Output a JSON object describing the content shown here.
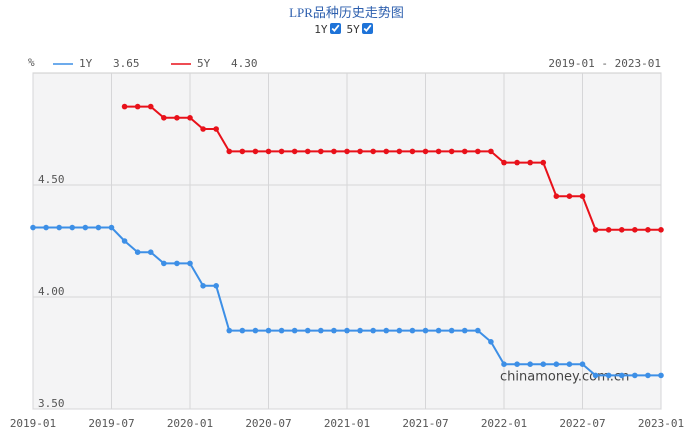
{
  "chart_data": {
    "type": "line",
    "title": "LPR品种历史走势图",
    "unit": "%",
    "date_range": "2019-01 - 2023-01",
    "watermark": "chinamoney.com.cn",
    "x": [
      "2019-01",
      "2019-02",
      "2019-03",
      "2019-04",
      "2019-05",
      "2019-06",
      "2019-07",
      "2019-08",
      "2019-09",
      "2019-10",
      "2019-11",
      "2019-12",
      "2020-01",
      "2020-02",
      "2020-03",
      "2020-04",
      "2020-05",
      "2020-06",
      "2020-07",
      "2020-08",
      "2020-09",
      "2020-10",
      "2020-11",
      "2020-12",
      "2021-01",
      "2021-02",
      "2021-03",
      "2021-04",
      "2021-05",
      "2021-06",
      "2021-07",
      "2021-08",
      "2021-09",
      "2021-10",
      "2021-11",
      "2021-12",
      "2022-01",
      "2022-02",
      "2022-03",
      "2022-04",
      "2022-05",
      "2022-06",
      "2022-07",
      "2022-08",
      "2022-09",
      "2022-10",
      "2022-11",
      "2022-12",
      "2023-01"
    ],
    "series": [
      {
        "name": "1Y",
        "color": "#3d8fe6",
        "latest_label": "3.65",
        "values": [
          4.31,
          4.31,
          4.31,
          4.31,
          4.31,
          4.31,
          4.31,
          4.25,
          4.2,
          4.2,
          4.15,
          4.15,
          4.15,
          4.05,
          4.05,
          3.85,
          3.85,
          3.85,
          3.85,
          3.85,
          3.85,
          3.85,
          3.85,
          3.85,
          3.85,
          3.85,
          3.85,
          3.85,
          3.85,
          3.85,
          3.85,
          3.85,
          3.85,
          3.85,
          3.85,
          3.8,
          3.7,
          3.7,
          3.7,
          3.7,
          3.7,
          3.7,
          3.7,
          3.65,
          3.65,
          3.65,
          3.65,
          3.65,
          3.65
        ]
      },
      {
        "name": "5Y",
        "color": "#e8111a",
        "latest_label": "4.30",
        "values": [
          null,
          null,
          null,
          null,
          null,
          null,
          null,
          4.85,
          4.85,
          4.85,
          4.8,
          4.8,
          4.8,
          4.75,
          4.75,
          4.65,
          4.65,
          4.65,
          4.65,
          4.65,
          4.65,
          4.65,
          4.65,
          4.65,
          4.65,
          4.65,
          4.65,
          4.65,
          4.65,
          4.65,
          4.65,
          4.65,
          4.65,
          4.65,
          4.65,
          4.65,
          4.6,
          4.6,
          4.6,
          4.6,
          4.45,
          4.45,
          4.45,
          4.3,
          4.3,
          4.3,
          4.3,
          4.3,
          4.3
        ]
      }
    ],
    "xlim": [
      "2019-01",
      "2023-01"
    ],
    "xticks": [
      "2019-01",
      "2019-07",
      "2020-01",
      "2020-07",
      "2021-01",
      "2021-07",
      "2022-01",
      "2022-07",
      "2023-01"
    ],
    "ylim": [
      3.5,
      5.0
    ],
    "yticks": [
      {
        "value": 3.5,
        "label": "3.50"
      },
      {
        "value": 4.0,
        "label": "4.00"
      },
      {
        "value": 4.5,
        "label": "4.50"
      }
    ],
    "grid": true
  }
}
